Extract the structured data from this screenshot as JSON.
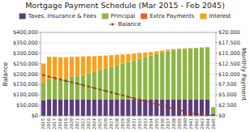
{
  "chart_data": {
    "type": "bar",
    "title": "Mortgage Payment Schedule (Mar 2015 - Feb 2045)",
    "stacked": true,
    "grid": true,
    "legend": "top",
    "ylabel": "Balance",
    "y2label": "Monthly Payment",
    "categories": [
      "2015",
      "2016",
      "2017",
      "2018",
      "2019",
      "2020",
      "2021",
      "2022",
      "2023",
      "2024",
      "2025",
      "2026",
      "2027",
      "2028",
      "2029",
      "2030",
      "2031",
      "2032",
      "2033",
      "2034",
      "2035",
      "2036",
      "2037",
      "2038",
      "2039",
      "2040",
      "2041",
      "2042",
      "2043",
      "2044",
      "2045"
    ],
    "series": [
      {
        "name": "Taxes, Insurance & Fees",
        "color": "#5b3b7a",
        "type": "bar",
        "values": [
          75000,
          80000,
          80000,
          78000,
          78000,
          78000,
          78000,
          78000,
          78000,
          78000,
          78000,
          78000,
          78000,
          78000,
          78000,
          78000,
          78000,
          78000,
          78000,
          78000,
          78000,
          78000,
          78000,
          78000,
          78000,
          78000,
          78000,
          78000,
          78000,
          78000,
          9000
        ]
      },
      {
        "name": "Principal",
        "color": "#8db544",
        "type": "bar",
        "values": [
          80000,
          95000,
          98000,
          100000,
          103000,
          108000,
          113000,
          118000,
          125000,
          132000,
          140000,
          148000,
          156000,
          164000,
          172000,
          180000,
          188000,
          196000,
          204000,
          211000,
          218000,
          225000,
          231000,
          236000,
          240000,
          243000,
          245000,
          247000,
          249000,
          251000,
          32000
        ]
      },
      {
        "name": "Extra Payments",
        "color": "#e8622a",
        "type": "bar",
        "values": [
          0,
          0,
          0,
          0,
          0,
          0,
          0,
          0,
          0,
          0,
          0,
          0,
          0,
          0,
          0,
          0,
          0,
          0,
          0,
          0,
          0,
          0,
          0,
          0,
          0,
          0,
          0,
          0,
          0,
          0,
          0
        ]
      },
      {
        "name": "Interest",
        "color": "#f9a11b",
        "type": "bar",
        "values": [
          95000,
          108000,
          105000,
          103000,
          100000,
          97000,
          93000,
          89000,
          83000,
          76000,
          70000,
          63000,
          57000,
          51000,
          44000,
          38000,
          32000,
          27000,
          21000,
          17000,
          13000,
          10000,
          8000,
          6000,
          4000,
          3000,
          2000,
          1500,
          1000,
          500,
          500
        ]
      },
      {
        "name": "Balance",
        "color": "#8b3a1a",
        "type": "line",
        "marker": "circle",
        "line_style": "dashed",
        "values": [
          195000,
          188000,
          181000,
          174000,
          167000,
          161000,
          154000,
          147000,
          140000,
          133000,
          126000,
          119000,
          112000,
          105000,
          98000,
          91000,
          84000,
          77000,
          70000,
          63000,
          56000,
          49000,
          42000,
          35000,
          28000,
          21000,
          14000,
          9000,
          5000,
          2000,
          300
        ]
      }
    ],
    "ylim": [
      0,
      400000
    ],
    "yticks": [
      {
        "value": 0,
        "label": "$0"
      },
      {
        "value": 50000,
        "label": "$50,000"
      },
      {
        "value": 100000,
        "label": "$100,000"
      },
      {
        "value": 150000,
        "label": "$150,000"
      },
      {
        "value": 200000,
        "label": "$200,000"
      },
      {
        "value": 250000,
        "label": "$250,000"
      },
      {
        "value": 300000,
        "label": "$300,000"
      },
      {
        "value": 350000,
        "label": "$350,000"
      },
      {
        "value": 400000,
        "label": "$400,000"
      }
    ],
    "y2lim": [
      0,
      20000
    ],
    "y2ticks": [
      {
        "value": 0,
        "label": "$0"
      },
      {
        "value": 2500,
        "label": "$2,500"
      },
      {
        "value": 5000,
        "label": "$5,000"
      },
      {
        "value": 7500,
        "label": "$7,500"
      },
      {
        "value": 10000,
        "label": "$10,000"
      },
      {
        "value": 12500,
        "label": "$12,500"
      },
      {
        "value": 15000,
        "label": "$15,000"
      },
      {
        "value": 17500,
        "label": "$17,500"
      },
      {
        "value": 20000,
        "label": "$20,000"
      }
    ]
  }
}
